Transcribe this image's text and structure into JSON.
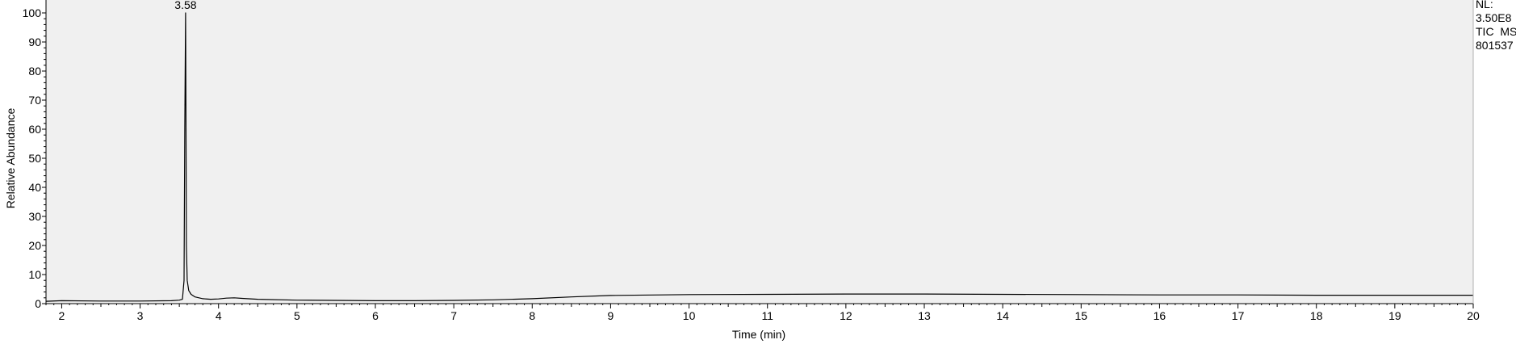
{
  "chart_data": {
    "type": "line",
    "title": "",
    "xlabel": "Time (min)",
    "ylabel": "Relative Abundance",
    "xlim": [
      1.8,
      20
    ],
    "ylim": [
      0,
      100
    ],
    "x_ticks": [
      2,
      3,
      4,
      5,
      6,
      7,
      8,
      9,
      10,
      11,
      12,
      13,
      14,
      15,
      16,
      17,
      18,
      19,
      20
    ],
    "y_ticks": [
      0,
      10,
      20,
      30,
      40,
      50,
      60,
      70,
      80,
      90,
      100
    ],
    "grid": false,
    "plot_background": "#f0f0f0",
    "line_color": "#000000",
    "annotations": [
      {
        "x": 3.58,
        "y": 100,
        "label": "3.58"
      }
    ],
    "info": [
      "NL:",
      "3.50E8",
      "TIC  MS",
      "801537"
    ],
    "series": [
      {
        "x": [
          1.8,
          2.0,
          2.5,
          3.0,
          3.4,
          3.5,
          3.54,
          3.56,
          3.57,
          3.58,
          3.585,
          3.59,
          3.6,
          3.62,
          3.65,
          3.7,
          3.8,
          3.9,
          4.0,
          4.1,
          4.2,
          4.3,
          4.5,
          5.0,
          5.5,
          6.0,
          6.5,
          7.0,
          7.5,
          8.0,
          8.5,
          9.0,
          10.0,
          11.0,
          12.0,
          13.0,
          14.0,
          15.0,
          16.0,
          17.0,
          18.0,
          19.0,
          20.0
        ],
        "values": [
          0.8,
          1.0,
          0.9,
          0.9,
          1.0,
          1.2,
          1.5,
          8,
          60,
          100,
          62,
          20,
          8,
          4.5,
          3.2,
          2.3,
          1.7,
          1.5,
          1.6,
          1.9,
          2.0,
          1.8,
          1.5,
          1.2,
          1.1,
          1.0,
          1.0,
          1.1,
          1.3,
          1.7,
          2.3,
          2.8,
          3.1,
          3.2,
          3.3,
          3.3,
          3.2,
          3.1,
          3.0,
          3.0,
          2.9,
          2.9,
          2.9
        ]
      }
    ]
  }
}
